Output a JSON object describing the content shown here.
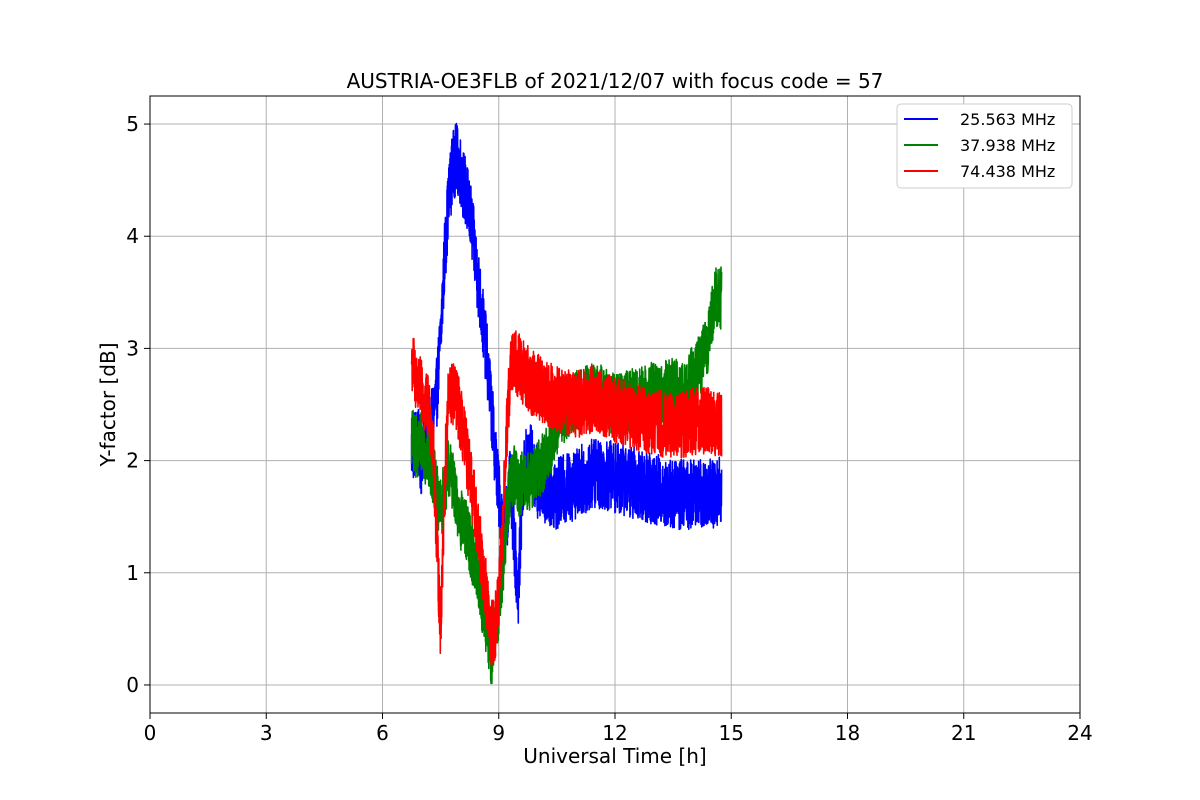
{
  "chart_data": {
    "type": "line",
    "title": "AUSTRIA-OE3FLB of 2021/12/07 with focus code = 57",
    "xlabel": "Universal Time [h]",
    "ylabel": "Y-factor [dB]",
    "xlim": [
      0,
      24
    ],
    "ylim": [
      -0.25,
      5.25
    ],
    "xticks": [
      0,
      3,
      6,
      9,
      12,
      15,
      18,
      21,
      24
    ],
    "yticks": [
      0,
      1,
      2,
      3,
      4,
      5
    ],
    "grid": true,
    "legend_position": "top-right",
    "series": [
      {
        "name": "25.563 MHz",
        "color": "#0000ff",
        "noise": 0.32,
        "points": [
          [
            6.75,
            2.1
          ],
          [
            6.9,
            2.2
          ],
          [
            7.0,
            2.0
          ],
          [
            7.1,
            2.3
          ],
          [
            7.2,
            2.1
          ],
          [
            7.3,
            2.4
          ],
          [
            7.4,
            2.6
          ],
          [
            7.5,
            3.1
          ],
          [
            7.6,
            3.8
          ],
          [
            7.7,
            4.3
          ],
          [
            7.8,
            4.6
          ],
          [
            7.9,
            4.7
          ],
          [
            8.0,
            4.6
          ],
          [
            8.1,
            4.45
          ],
          [
            8.2,
            4.3
          ],
          [
            8.3,
            4.1
          ],
          [
            8.4,
            3.8
          ],
          [
            8.5,
            3.5
          ],
          [
            8.6,
            3.2
          ],
          [
            8.7,
            2.9
          ],
          [
            8.8,
            2.5
          ],
          [
            8.9,
            2.1
          ],
          [
            9.0,
            1.7
          ],
          [
            9.1,
            1.4
          ],
          [
            9.2,
            1.5
          ],
          [
            9.3,
            1.8
          ],
          [
            9.4,
            1.3
          ],
          [
            9.5,
            0.8
          ],
          [
            9.6,
            1.7
          ],
          [
            9.7,
            2.0
          ],
          [
            9.8,
            2.05
          ],
          [
            10.0,
            1.8
          ],
          [
            10.5,
            1.7
          ],
          [
            11.0,
            1.8
          ],
          [
            11.5,
            1.9
          ],
          [
            12.0,
            1.85
          ],
          [
            12.5,
            1.8
          ],
          [
            13.0,
            1.75
          ],
          [
            13.5,
            1.7
          ],
          [
            14.0,
            1.7
          ],
          [
            14.5,
            1.7
          ],
          [
            14.75,
            1.75
          ]
        ]
      },
      {
        "name": "37.938 MHz",
        "color": "#008000",
        "noise": 0.28,
        "points": [
          [
            6.75,
            2.2
          ],
          [
            6.9,
            2.1
          ],
          [
            7.0,
            2.2
          ],
          [
            7.1,
            2.05
          ],
          [
            7.2,
            2.0
          ],
          [
            7.3,
            1.9
          ],
          [
            7.4,
            1.7
          ],
          [
            7.5,
            1.55
          ],
          [
            7.6,
            1.75
          ],
          [
            7.7,
            1.95
          ],
          [
            7.8,
            1.85
          ],
          [
            7.9,
            1.6
          ],
          [
            8.0,
            1.5
          ],
          [
            8.1,
            1.4
          ],
          [
            8.2,
            1.35
          ],
          [
            8.3,
            1.2
          ],
          [
            8.4,
            1.05
          ],
          [
            8.5,
            0.9
          ],
          [
            8.6,
            0.65
          ],
          [
            8.7,
            0.45
          ],
          [
            8.8,
            0.25
          ],
          [
            8.9,
            0.4
          ],
          [
            9.0,
            0.7
          ],
          [
            9.1,
            1.0
          ],
          [
            9.2,
            1.5
          ],
          [
            9.3,
            1.8
          ],
          [
            9.4,
            1.9
          ],
          [
            9.5,
            1.75
          ],
          [
            9.6,
            1.8
          ],
          [
            9.8,
            1.8
          ],
          [
            10.0,
            1.9
          ],
          [
            10.3,
            2.1
          ],
          [
            10.6,
            2.4
          ],
          [
            11.0,
            2.55
          ],
          [
            11.5,
            2.6
          ],
          [
            12.0,
            2.5
          ],
          [
            12.5,
            2.55
          ],
          [
            13.0,
            2.6
          ],
          [
            13.5,
            2.65
          ],
          [
            13.8,
            2.6
          ],
          [
            14.0,
            2.75
          ],
          [
            14.2,
            2.85
          ],
          [
            14.4,
            3.05
          ],
          [
            14.5,
            3.3
          ],
          [
            14.6,
            3.45
          ],
          [
            14.75,
            3.45
          ]
        ]
      },
      {
        "name": "74.438 MHz",
        "color": "#ff0000",
        "noise": 0.3,
        "points": [
          [
            6.75,
            2.9
          ],
          [
            6.85,
            2.75
          ],
          [
            7.0,
            2.6
          ],
          [
            7.1,
            2.5
          ],
          [
            7.2,
            2.45
          ],
          [
            7.3,
            2.2
          ],
          [
            7.4,
            1.3
          ],
          [
            7.5,
            0.5
          ],
          [
            7.6,
            1.8
          ],
          [
            7.7,
            2.55
          ],
          [
            7.8,
            2.6
          ],
          [
            7.9,
            2.55
          ],
          [
            8.0,
            2.4
          ],
          [
            8.1,
            2.2
          ],
          [
            8.2,
            2.0
          ],
          [
            8.3,
            1.75
          ],
          [
            8.4,
            1.55
          ],
          [
            8.5,
            1.3
          ],
          [
            8.6,
            1.0
          ],
          [
            8.7,
            0.75
          ],
          [
            8.8,
            0.45
          ],
          [
            8.9,
            0.5
          ],
          [
            9.0,
            0.75
          ],
          [
            9.1,
            1.4
          ],
          [
            9.2,
            2.2
          ],
          [
            9.3,
            2.8
          ],
          [
            9.4,
            2.95
          ],
          [
            9.5,
            2.85
          ],
          [
            9.7,
            2.75
          ],
          [
            10.0,
            2.65
          ],
          [
            10.5,
            2.55
          ],
          [
            11.0,
            2.5
          ],
          [
            11.5,
            2.55
          ],
          [
            12.0,
            2.45
          ],
          [
            12.5,
            2.4
          ],
          [
            13.0,
            2.35
          ],
          [
            13.5,
            2.3
          ],
          [
            14.0,
            2.35
          ],
          [
            14.5,
            2.35
          ],
          [
            14.75,
            2.3
          ]
        ]
      }
    ]
  }
}
